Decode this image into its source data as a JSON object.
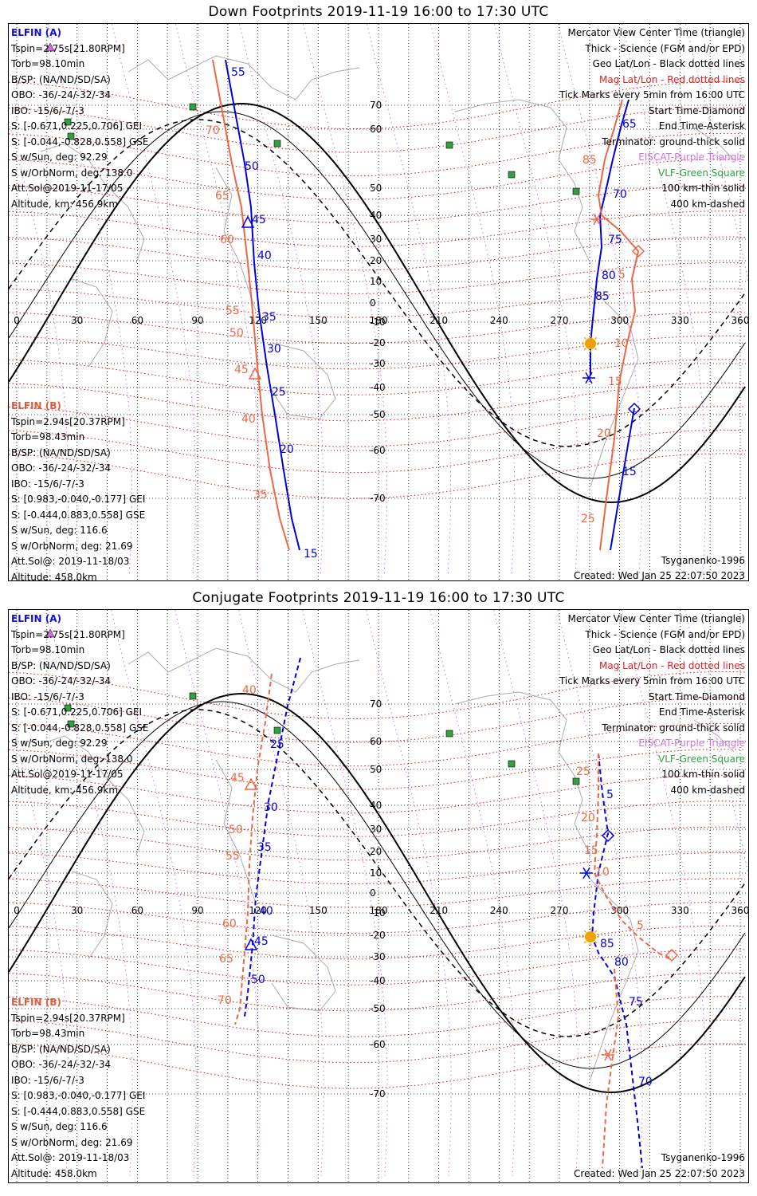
{
  "colors": {
    "sat_a": "#0000dd",
    "sat_b": "#ee6644",
    "geo_grid": "#000000",
    "mag_grid": "#e01010",
    "purple": "#d070e0",
    "green": "#30a040",
    "coast": "#aaaaaa",
    "sun": "#f0a000"
  },
  "panels": [
    {
      "title": "Down Footprints 2019-11-19 16:00 to 17:30 UTC",
      "sat_a": {
        "name": "ELFIN (A)",
        "lines": [
          "Tspin=2.75s[21.80RPM]",
          "Torb=98.10min",
          "B/SP: (NA/ND/SD/SA)",
          "OBO: -36/-24/-32/-34",
          "IBO: -15/6/-7/-3",
          "S: [-0.671,0.225,0.706] GEI",
          "S: [-0.044,-0.828,0.558] GSE",
          "S w/Sun, deg: 92.29",
          "S w/OrbNorm, deg: 138.0",
          "Att.Sol@2019-11-17/05",
          "Altitude, km: 456.9km"
        ]
      },
      "sat_b": {
        "name": "ELFIN (B)",
        "lines": [
          "Tspin=2.94s[20.37RPM]",
          "Torb=98.43min",
          "B/SP: (NA/ND/SD/SA)",
          "OBO: -36/-24/-32/-34",
          "IBO: -15/6/-7/-3",
          "S: [0.983,-0.040,-0.177] GEI",
          "S: [-0.444,0.883,0.558] GSE",
          "S w/Sun, deg: 116.6",
          "S w/OrbNorm, deg: 21.69",
          "Att.Sol@: 2019-11-18/03",
          "Altitude: 458.0km"
        ]
      },
      "legend": [
        {
          "text": "Mercator View Center Time (triangle)",
          "color": "black"
        },
        {
          "text": "Thick - Science (FGM and/or EPD)",
          "color": "black"
        },
        {
          "text": "Geo Lat/Lon - Black dotted lines",
          "color": "black"
        },
        {
          "text": "Mag Lat/Lon - Red dotted lines",
          "color": "red"
        },
        {
          "text": "Tick Marks every 5min from 16:00 UTC",
          "color": "black"
        },
        {
          "text": "Start Time-Diamond",
          "color": "black"
        },
        {
          "text": "End Time-Asterisk",
          "color": "black"
        },
        {
          "text": "Terminator: ground-thick solid",
          "color": "black"
        },
        {
          "text": "EISCAT-Purple Triangle",
          "color": "purple"
        },
        {
          "text": "VLF-Green Square",
          "color": "green"
        },
        {
          "text": "100 km-thin solid",
          "color": "black"
        },
        {
          "text": "400 km-dashed",
          "color": "black"
        }
      ],
      "footer_left": "",
      "footer_right_top": "Tsyganenko-1996",
      "footer_right_bottom": "Created: Wed Jan 25 22:07:50 2023",
      "lon_ticks": [
        "0",
        "30",
        "60",
        "90",
        "120",
        "150",
        "180",
        "210",
        "240",
        "270",
        "300",
        "330",
        "360"
      ],
      "lat_ticks": [
        "70",
        "60",
        "50",
        "40",
        "30",
        "20",
        "10",
        "0",
        "-10",
        "-20",
        "-30",
        "-40",
        "-50",
        "-60",
        "-70"
      ],
      "track_a_ticks": [
        "55",
        "50",
        "45",
        "40",
        "35",
        "30",
        "25",
        "20",
        "15",
        "65",
        "70",
        "75",
        "80",
        "85"
      ],
      "track_b_ticks": [
        "70",
        "65",
        "60",
        "55",
        "50",
        "45",
        "40",
        "35",
        "85",
        "5",
        "10",
        "15",
        "20",
        "25"
      ]
    },
    {
      "title": "Conjugate Footprints 2019-11-19 16:00 to 17:30 UTC",
      "sat_a": {
        "name": "ELFIN (A)",
        "lines": [
          "Tspin=2.75s[21.80RPM]",
          "Torb=98.10min",
          "B/SP: (NA/ND/SD/SA)",
          "OBO: -36/-24/-32/-34",
          "IBO: -15/6/-7/-3",
          "S: [-0.671,0.225,0.706] GEI",
          "S: [-0.044,-0.828,0.558] GSE",
          "S w/Sun, deg: 92.29",
          "S w/OrbNorm, deg: 138.0",
          "Att.Sol@2019-11-17/05",
          "Altitude, km: 456.9km"
        ]
      },
      "sat_b": {
        "name": "ELFIN (B)",
        "lines": [
          "Tspin=2.94s[20.37RPM]",
          "Torb=98.43min",
          "B/SP: (NA/ND/SD/SA)",
          "OBO: -36/-24/-32/-34",
          "IBO: -15/6/-7/-3",
          "S: [0.983,-0.040,-0.177] GEI",
          "S: [-0.444,0.883,0.558] GSE",
          "S w/Sun, deg: 116.6",
          "S w/OrbNorm, deg: 21.69",
          "Att.Sol@: 2019-11-18/03",
          "Altitude: 458.0km"
        ]
      },
      "legend": [
        {
          "text": "Mercator View Center Time (triangle)",
          "color": "black"
        },
        {
          "text": "Thick - Science (FGM and/or EPD)",
          "color": "black"
        },
        {
          "text": "Geo Lat/Lon - Black dotted lines",
          "color": "black"
        },
        {
          "text": "Mag Lat/Lon - Red dotted lines",
          "color": "red"
        },
        {
          "text": "Tick Marks every 5min from 16:00 UTC",
          "color": "black"
        },
        {
          "text": "Start Time-Diamond",
          "color": "black"
        },
        {
          "text": "End Time-Asterisk",
          "color": "black"
        },
        {
          "text": "Terminator: ground-thick solid",
          "color": "black"
        },
        {
          "text": "EISCAT-Purple Triangle",
          "color": "purple"
        },
        {
          "text": "VLF-Green Square",
          "color": "green"
        },
        {
          "text": "100 km-thin solid",
          "color": "black"
        },
        {
          "text": "400 km-dashed",
          "color": "black"
        }
      ],
      "footer_right_top": "Tsyganenko-1996",
      "footer_right_bottom": "Created: Wed Jan 25 22:07:50 2023",
      "lon_ticks": [
        "0",
        "30",
        "60",
        "90",
        "120",
        "150",
        "180",
        "210",
        "240",
        "270",
        "300",
        "330",
        "360"
      ],
      "lat_ticks": [
        "70",
        "60",
        "50",
        "40",
        "30",
        "20",
        "10",
        "0",
        "-10",
        "-20",
        "-30",
        "-40",
        "-50",
        "-60",
        "-70"
      ],
      "track_a_ticks": [
        "25",
        "30",
        "35",
        "40",
        "45",
        "50",
        "5",
        "85",
        "80",
        "75",
        "70"
      ],
      "track_b_ticks": [
        "40",
        "45",
        "50",
        "55",
        "60",
        "65",
        "70",
        "25",
        "20",
        "15",
        "10",
        "5"
      ]
    }
  ]
}
